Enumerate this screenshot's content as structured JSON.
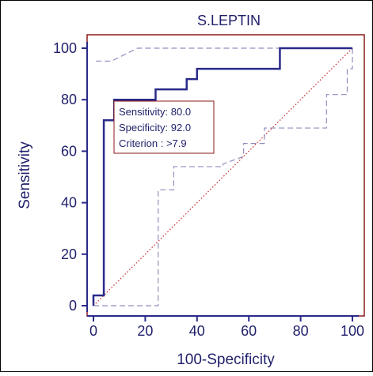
{
  "chart_data": {
    "type": "line",
    "title": "S.LEPTIN",
    "xlabel": "100-Specificity",
    "ylabel": "Sensitivity",
    "xlim": [
      0,
      100
    ],
    "ylim": [
      0,
      100
    ],
    "x_ticks": [
      "0",
      "20",
      "40",
      "60",
      "80",
      "100"
    ],
    "y_ticks": [
      "0",
      "20",
      "40",
      "60",
      "80",
      "100"
    ],
    "grid": false,
    "series": [
      {
        "role": "roc-curve",
        "color": "#2a2a8a",
        "style": "solid",
        "points": [
          [
            0,
            0
          ],
          [
            0,
            4
          ],
          [
            4,
            4
          ],
          [
            4,
            72
          ],
          [
            8,
            72
          ],
          [
            8,
            80
          ],
          [
            24,
            80
          ],
          [
            24,
            84
          ],
          [
            36,
            84
          ],
          [
            36,
            88
          ],
          [
            40,
            88
          ],
          [
            40,
            92
          ],
          [
            72,
            92
          ],
          [
            72,
            100
          ],
          [
            100,
            100
          ]
        ]
      },
      {
        "role": "upper-confidence-bound",
        "color": "#8f8fbf",
        "style": "dashed",
        "points": [
          [
            1,
            95
          ],
          [
            7,
            95
          ],
          [
            17,
            100
          ],
          [
            100,
            100
          ]
        ]
      },
      {
        "role": "lower-confidence-bound",
        "color": "#8f8fbf",
        "style": "dashed",
        "points": [
          [
            0,
            0
          ],
          [
            25,
            0
          ],
          [
            25,
            45
          ],
          [
            31,
            45
          ],
          [
            31,
            54
          ],
          [
            50,
            54
          ],
          [
            50,
            55
          ],
          [
            58,
            58
          ],
          [
            58,
            63
          ],
          [
            66,
            63
          ],
          [
            66,
            69
          ],
          [
            90,
            69
          ],
          [
            90,
            82
          ],
          [
            98,
            82
          ],
          [
            98,
            92
          ],
          [
            100,
            92
          ],
          [
            100,
            100
          ]
        ]
      },
      {
        "role": "reference-diagonal",
        "color": "#c83232",
        "style": "dotted",
        "points": [
          [
            0,
            0
          ],
          [
            100,
            100
          ]
        ]
      }
    ],
    "annotation": {
      "lines": [
        "Sensitivity: 80.0",
        "Specificity: 92.0",
        "Criterion : >7.9"
      ],
      "border_color": "#8b1a1a"
    },
    "colors": {
      "axis": "#2a2a8a",
      "frame": "#8b1a1a",
      "text": "#1f1f6b"
    }
  }
}
